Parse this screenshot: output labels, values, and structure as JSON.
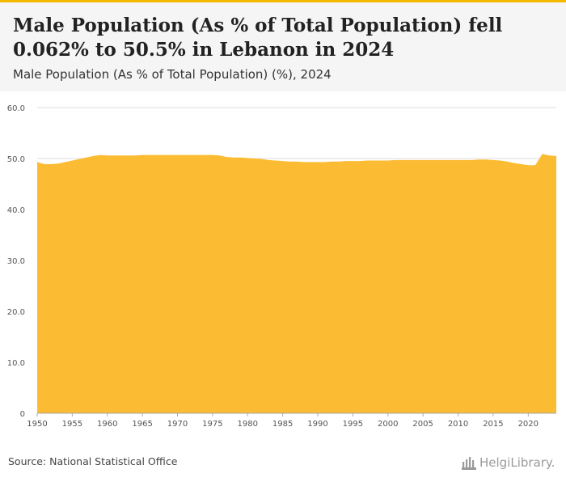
{
  "header": {
    "title": "Male Population (As % of Total Population) fell 0.062% to 50.5% in Lebanon in 2024",
    "subtitle": "Male Population (As % of Total Population) (%), 2024"
  },
  "footer": {
    "source": "Source: National Statistical Office",
    "brand": "HelgiLibrary."
  },
  "colors": {
    "accent": "#f5b800",
    "area_fill": "#fbbc33",
    "grid": "#dddddd",
    "header_bg": "#f5f5f5"
  },
  "chart_data": {
    "type": "area",
    "title": "Male Population (As % of Total Population) (%), 2024",
    "ylim": [
      0,
      60
    ],
    "y_ticks": [
      0,
      10,
      20,
      30,
      40,
      50,
      60
    ],
    "y_tick_labels": [
      "0",
      "10.0",
      "20.0",
      "30.0",
      "40.0",
      "50.0",
      "60.0"
    ],
    "x_ticks": [
      1950,
      1955,
      1960,
      1965,
      1970,
      1975,
      1980,
      1985,
      1990,
      1995,
      2000,
      2005,
      2010,
      2015,
      2020
    ],
    "grid": true,
    "x": [
      1950,
      1951,
      1952,
      1953,
      1954,
      1955,
      1956,
      1957,
      1958,
      1959,
      1960,
      1961,
      1962,
      1963,
      1964,
      1965,
      1966,
      1967,
      1968,
      1969,
      1970,
      1971,
      1972,
      1973,
      1974,
      1975,
      1976,
      1977,
      1978,
      1979,
      1980,
      1981,
      1982,
      1983,
      1984,
      1985,
      1986,
      1987,
      1988,
      1989,
      1990,
      1991,
      1992,
      1993,
      1994,
      1995,
      1996,
      1997,
      1998,
      1999,
      2000,
      2001,
      2002,
      2003,
      2004,
      2005,
      2006,
      2007,
      2008,
      2009,
      2010,
      2011,
      2012,
      2013,
      2014,
      2015,
      2016,
      2017,
      2018,
      2019,
      2020,
      2021,
      2022,
      2023,
      2024
    ],
    "values": [
      49.3,
      48.9,
      48.9,
      49.0,
      49.3,
      49.6,
      49.9,
      50.2,
      50.5,
      50.7,
      50.6,
      50.6,
      50.6,
      50.6,
      50.6,
      50.7,
      50.7,
      50.7,
      50.7,
      50.7,
      50.7,
      50.7,
      50.7,
      50.7,
      50.7,
      50.7,
      50.6,
      50.3,
      50.2,
      50.2,
      50.1,
      50.0,
      49.9,
      49.7,
      49.6,
      49.5,
      49.4,
      49.4,
      49.3,
      49.3,
      49.3,
      49.3,
      49.4,
      49.4,
      49.5,
      49.5,
      49.5,
      49.6,
      49.6,
      49.6,
      49.6,
      49.7,
      49.7,
      49.7,
      49.7,
      49.7,
      49.7,
      49.7,
      49.7,
      49.7,
      49.7,
      49.7,
      49.7,
      49.8,
      49.8,
      49.7,
      49.6,
      49.4,
      49.1,
      48.9,
      48.7,
      48.7,
      50.9,
      50.6,
      50.5
    ]
  }
}
